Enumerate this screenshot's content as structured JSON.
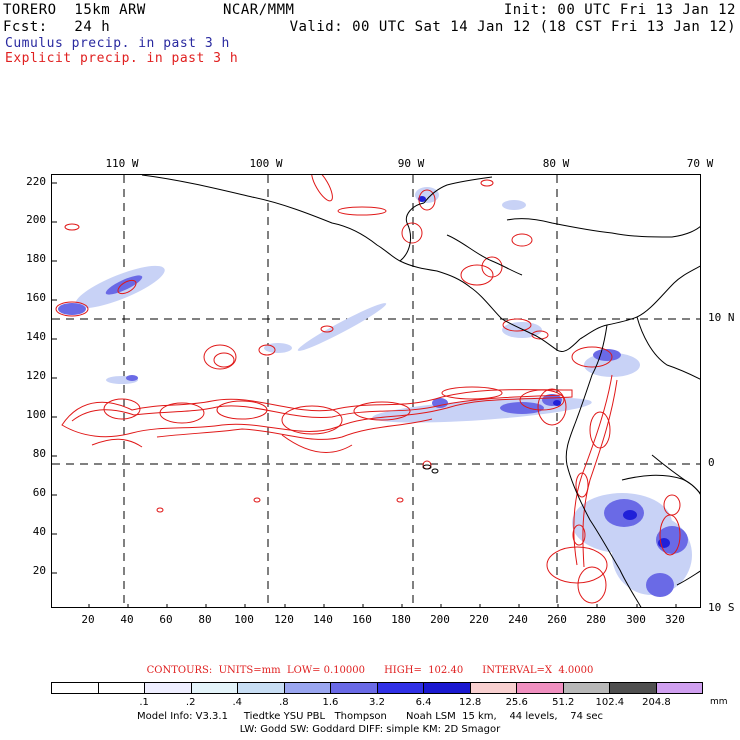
{
  "header": {
    "model": "TORERO  15km ARW",
    "org": "NCAR/MMM",
    "init": "Init: 00 UTC Fri 13 Jan 12",
    "fcst": "Fcst:   24 h",
    "valid": "Valid: 00 UTC Sat 14 Jan 12 (18 CST Fri 13 Jan 12)",
    "legend_cumulus": "Cumulus precip. in past 3 h",
    "legend_explicit": "Explicit precip. in past 3 h"
  },
  "map": {
    "top_lon_labels": [
      "110 W",
      "100 W",
      "90 W",
      "80 W",
      "70 W"
    ],
    "right_lat_labels": [
      "10 N",
      "0",
      "10 S"
    ],
    "left_ticks": [
      "220",
      "200",
      "180",
      "160",
      "140",
      "120",
      "100",
      "80",
      "60",
      "40",
      "20"
    ],
    "bottom_ticks": [
      "20",
      "40",
      "60",
      "80",
      "100",
      "120",
      "140",
      "160",
      "180",
      "200",
      "220",
      "240",
      "260",
      "280",
      "300",
      "320"
    ],
    "colors": {
      "cumulus": "#3a3ad8",
      "explicit": "#e01818",
      "coast": "#000000",
      "grid": "#000000"
    }
  },
  "contours_line": "CONTOURS:  UNITS=mm  LOW= 0.10000      HIGH=  102.40      INTERVAL=X  4.0000",
  "colorbar": {
    "colors": [
      "#ffffff",
      "#ffffff",
      "#eeeeff",
      "#e4f4fa",
      "#c8def4",
      "#9aa6f0",
      "#6a6ae6",
      "#3030e6",
      "#1a18d0",
      "#f8d0d0",
      "#f090c0",
      "#b8b8b8",
      "#505050",
      "#d0a0f0"
    ],
    "values": [
      ".1",
      ".2",
      ".4",
      ".8",
      "1.6",
      "3.2",
      "6.4",
      "12.8",
      "25.6",
      "51.2",
      "102.4",
      "204.8"
    ],
    "unit": "mm"
  },
  "footer": {
    "line1": "Model Info: V3.3.1     Tiedtke YSU PBL   Thompson      Noah LSM  15 km,    44 levels,    74 sec",
    "line2": "LW: Godd SW: Goddard DIFF: simple KM: 2D Smagor"
  }
}
